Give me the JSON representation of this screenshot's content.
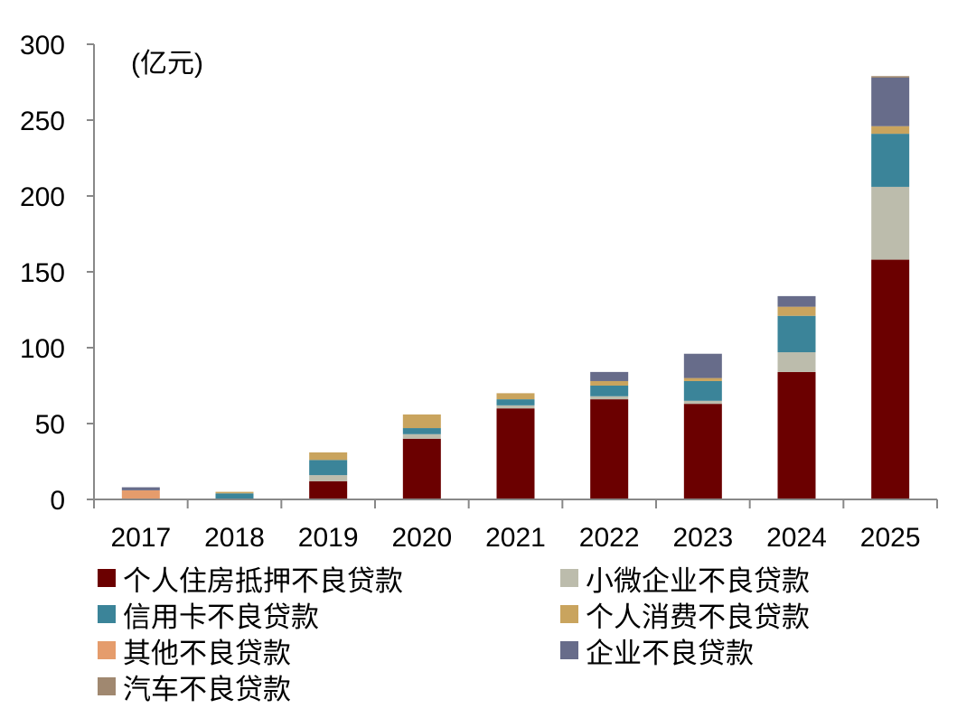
{
  "chart_data": {
    "type": "bar",
    "stacked": true,
    "unit_label": "(亿元)",
    "categories": [
      "2017",
      "2018",
      "2019",
      "2020",
      "2021",
      "2022",
      "2023",
      "2024",
      "2025"
    ],
    "ylim": [
      0,
      300
    ],
    "yticks": [
      0,
      50,
      100,
      150,
      200,
      250,
      300
    ],
    "grid": false,
    "legend_position": "bottom",
    "series": [
      {
        "name": "个人住房抵押不良贷款",
        "color": "#6b0000",
        "values": [
          0,
          0,
          12,
          40,
          60,
          66,
          63,
          84,
          158
        ]
      },
      {
        "name": "小微企业不良贷款",
        "color": "#bcbcac",
        "values": [
          0,
          0,
          4,
          3,
          2,
          2,
          2,
          13,
          48
        ]
      },
      {
        "name": "信用卡不良贷款",
        "color": "#3b8499",
        "values": [
          0,
          4,
          10,
          4,
          4,
          7,
          13,
          24,
          35
        ]
      },
      {
        "name": "个人消费不良贷款",
        "color": "#c9a45e",
        "values": [
          0,
          1,
          5,
          9,
          4,
          3,
          2,
          6,
          5
        ]
      },
      {
        "name": "其他不良贷款",
        "color": "#e59c6c",
        "values": [
          6,
          0,
          0,
          0,
          0,
          0,
          0,
          0,
          0
        ]
      },
      {
        "name": "企业不良贷款",
        "color": "#676c8a",
        "values": [
          2,
          0,
          0,
          0,
          0,
          6,
          16,
          7,
          32
        ]
      },
      {
        "name": "汽车不良贷款",
        "color": "#a08870",
        "values": [
          0,
          0,
          0,
          0,
          0,
          0,
          0,
          0,
          1
        ]
      }
    ]
  }
}
